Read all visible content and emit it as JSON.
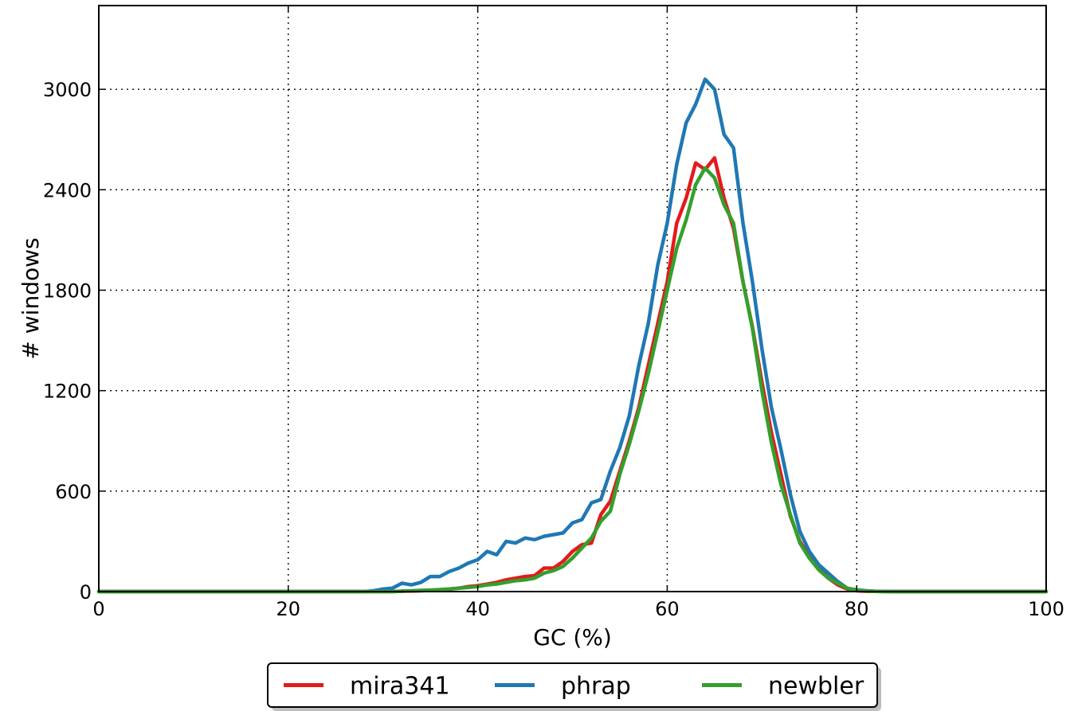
{
  "chart_data": {
    "type": "line",
    "title": "",
    "xlabel": "GC (%)",
    "ylabel": "# windows",
    "xlim": [
      0,
      100
    ],
    "ylim": [
      0,
      3500
    ],
    "xticks": [
      0,
      20,
      40,
      60,
      80,
      100
    ],
    "xtick_labels": [
      "0",
      "20",
      "40",
      "60",
      "80",
      "100"
    ],
    "yticks": [
      0,
      600,
      1200,
      1800,
      2400,
      3000
    ],
    "ytick_labels": [
      "0",
      "600",
      "1200",
      "1800",
      "2400",
      "3000"
    ],
    "grid": true,
    "legend_position": "bottom-center",
    "x": [
      0,
      1,
      2,
      3,
      4,
      5,
      6,
      7,
      8,
      9,
      10,
      11,
      12,
      13,
      14,
      15,
      16,
      17,
      18,
      19,
      20,
      21,
      22,
      23,
      24,
      25,
      26,
      27,
      28,
      29,
      30,
      31,
      32,
      33,
      34,
      35,
      36,
      37,
      38,
      39,
      40,
      41,
      42,
      43,
      44,
      45,
      46,
      47,
      48,
      49,
      50,
      51,
      52,
      53,
      54,
      55,
      56,
      57,
      58,
      59,
      60,
      61,
      62,
      63,
      64,
      65,
      66,
      67,
      68,
      69,
      70,
      71,
      72,
      73,
      74,
      75,
      76,
      77,
      78,
      79,
      80,
      81,
      82,
      83,
      84,
      85,
      86,
      87,
      88,
      89,
      90,
      91,
      92,
      93,
      94,
      95,
      96,
      97,
      98,
      99,
      100
    ],
    "series": [
      {
        "name": "mira341",
        "color": "#e41a1c",
        "values": [
          0,
          0,
          0,
          0,
          0,
          0,
          0,
          0,
          0,
          0,
          0,
          0,
          0,
          0,
          0,
          0,
          0,
          0,
          0,
          0,
          0,
          0,
          0,
          0,
          0,
          0,
          0,
          0,
          0,
          0,
          0,
          0,
          2,
          3,
          5,
          8,
          10,
          15,
          20,
          30,
          35,
          45,
          55,
          70,
          80,
          90,
          95,
          140,
          140,
          180,
          240,
          280,
          290,
          460,
          540,
          720,
          900,
          1100,
          1350,
          1600,
          1850,
          2200,
          2350,
          2560,
          2520,
          2590,
          2350,
          2170,
          1850,
          1580,
          1250,
          950,
          700,
          450,
          300,
          210,
          140,
          80,
          40,
          15,
          5,
          2,
          1,
          0,
          0,
          0,
          0,
          0,
          0,
          0,
          0,
          0,
          0,
          0,
          0,
          0,
          0,
          0,
          0,
          0,
          0
        ]
      },
      {
        "name": "phrap",
        "color": "#1f78b4",
        "values": [
          0,
          0,
          0,
          0,
          0,
          0,
          0,
          0,
          0,
          0,
          0,
          0,
          0,
          0,
          0,
          0,
          0,
          0,
          0,
          0,
          0,
          0,
          0,
          0,
          0,
          0,
          0,
          0,
          0,
          5,
          15,
          20,
          50,
          40,
          55,
          90,
          90,
          120,
          140,
          170,
          190,
          240,
          220,
          300,
          290,
          320,
          310,
          330,
          340,
          350,
          410,
          430,
          530,
          550,
          720,
          860,
          1050,
          1350,
          1600,
          1950,
          2200,
          2550,
          2800,
          2910,
          3060,
          3000,
          2730,
          2650,
          2200,
          1850,
          1450,
          1100,
          850,
          580,
          360,
          240,
          160,
          110,
          60,
          20,
          10,
          5,
          2,
          1,
          0,
          0,
          0,
          0,
          0,
          0,
          0,
          0,
          0,
          0,
          0,
          0,
          0,
          0,
          0,
          0,
          0
        ]
      },
      {
        "name": "newbler",
        "color": "#33a02c",
        "values": [
          0,
          0,
          0,
          0,
          0,
          0,
          0,
          0,
          0,
          0,
          0,
          0,
          0,
          0,
          0,
          0,
          0,
          0,
          0,
          0,
          0,
          0,
          0,
          0,
          0,
          0,
          0,
          0,
          0,
          0,
          0,
          0,
          3,
          5,
          7,
          9,
          12,
          15,
          20,
          25,
          30,
          40,
          45,
          55,
          65,
          70,
          80,
          110,
          125,
          150,
          200,
          260,
          320,
          420,
          480,
          700,
          880,
          1080,
          1300,
          1550,
          1800,
          2050,
          2220,
          2430,
          2530,
          2470,
          2310,
          2200,
          1850,
          1570,
          1200,
          890,
          640,
          460,
          290,
          200,
          130,
          80,
          50,
          20,
          8,
          3,
          1,
          0,
          0,
          0,
          0,
          0,
          0,
          0,
          0,
          0,
          0,
          0,
          0,
          0,
          0,
          0,
          0,
          0,
          0
        ]
      }
    ]
  }
}
